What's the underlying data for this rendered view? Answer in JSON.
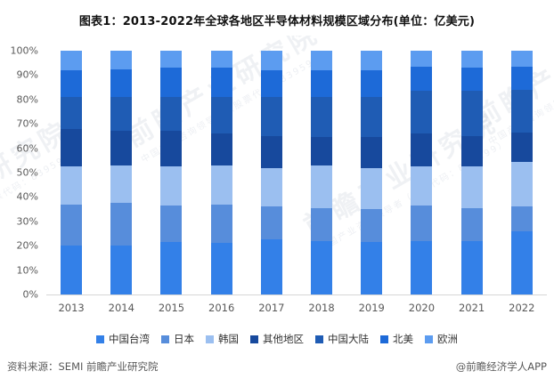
{
  "title": "图表1：2013-2022年全球各地区半导体材料规模区域分布(单位：亿美元)",
  "footer": {
    "source": "资料来源：SEMI 前瞻产业研究院",
    "credit": "@前瞻经济学人APP"
  },
  "watermark": {
    "main": "前瞻产业研究院",
    "tagline": "中国产业咨询领导者（股票代码：839599）"
  },
  "chart_data": {
    "type": "bar",
    "stacked": true,
    "percent": true,
    "title": "图表1：2013-2022年全球各地区半导体材料规模区域分布(单位：亿美元)",
    "xlabel": "",
    "ylabel": "",
    "ylim": [
      0,
      100
    ],
    "grid": false,
    "legend_position": "bottom",
    "yticks": [
      "100%",
      "90%",
      "80%",
      "70%",
      "60%",
      "50%",
      "40%",
      "30%",
      "20%",
      "10%",
      "0%"
    ],
    "categories": [
      "2013",
      "2014",
      "2015",
      "2016",
      "2017",
      "2018",
      "2019",
      "2020",
      "2021",
      "2022"
    ],
    "series": [
      {
        "name": "中国台湾",
        "key": "taiwan",
        "color": "#3380E8",
        "values": [
          20,
          20,
          21.5,
          21,
          22.5,
          22,
          21.5,
          22,
          22,
          26
        ]
      },
      {
        "name": "日本",
        "key": "japan",
        "color": "#578DDB",
        "values": [
          17,
          17.5,
          15,
          16,
          13.5,
          13.5,
          13.5,
          14.5,
          13.5,
          10
        ]
      },
      {
        "name": "韩国",
        "key": "korea",
        "color": "#9BBFF0",
        "values": [
          15.5,
          15.5,
          16,
          16,
          16,
          17.5,
          17,
          16,
          17,
          18.5
        ]
      },
      {
        "name": "其他地区",
        "key": "other-regions",
        "color": "#17499D",
        "values": [
          15.5,
          14,
          14.5,
          13,
          13,
          11.5,
          12.5,
          13.5,
          12.5,
          12
        ]
      },
      {
        "name": "中国大陆",
        "key": "china-mainland",
        "color": "#1F5CB4",
        "values": [
          13,
          14,
          14,
          15,
          16,
          16.5,
          16.5,
          17.5,
          18.5,
          17.5
        ]
      },
      {
        "name": "北美",
        "key": "north-america",
        "color": "#1D6AD8",
        "values": [
          11,
          11.5,
          12,
          12,
          11,
          11,
          11,
          10,
          9.5,
          9.5
        ]
      },
      {
        "name": "欧洲",
        "key": "europe",
        "color": "#5C9CF0",
        "values": [
          8,
          7.5,
          7,
          7,
          8,
          8,
          8,
          6.5,
          7,
          6.5
        ]
      }
    ]
  }
}
